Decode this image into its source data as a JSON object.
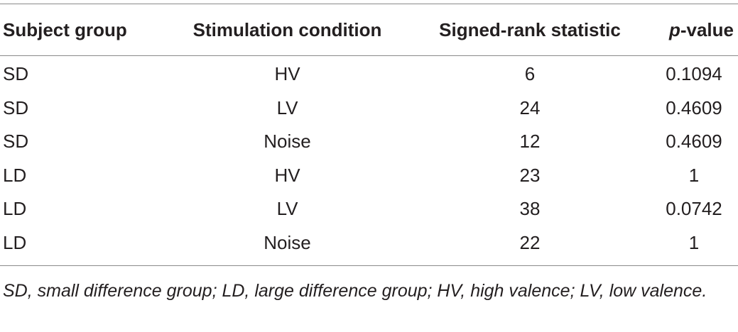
{
  "table": {
    "headers": {
      "group": "Subject group",
      "condition": "Stimulation condition",
      "statistic": "Signed-rank statistic",
      "pvalue_italic": "p",
      "pvalue_rest": "-value"
    },
    "rows": [
      {
        "group": "SD",
        "condition": "HV",
        "statistic": "6",
        "pvalue": "0.1094"
      },
      {
        "group": "SD",
        "condition": "LV",
        "statistic": "24",
        "pvalue": "0.4609"
      },
      {
        "group": "SD",
        "condition": "Noise",
        "statistic": "12",
        "pvalue": "0.4609"
      },
      {
        "group": "LD",
        "condition": "HV",
        "statistic": "23",
        "pvalue": "1"
      },
      {
        "group": "LD",
        "condition": "LV",
        "statistic": "38",
        "pvalue": "0.0742"
      },
      {
        "group": "LD",
        "condition": "Noise",
        "statistic": "22",
        "pvalue": "1"
      }
    ]
  },
  "footnote": "SD, small difference group; LD, large difference group; HV, high valence; LV, low valence."
}
